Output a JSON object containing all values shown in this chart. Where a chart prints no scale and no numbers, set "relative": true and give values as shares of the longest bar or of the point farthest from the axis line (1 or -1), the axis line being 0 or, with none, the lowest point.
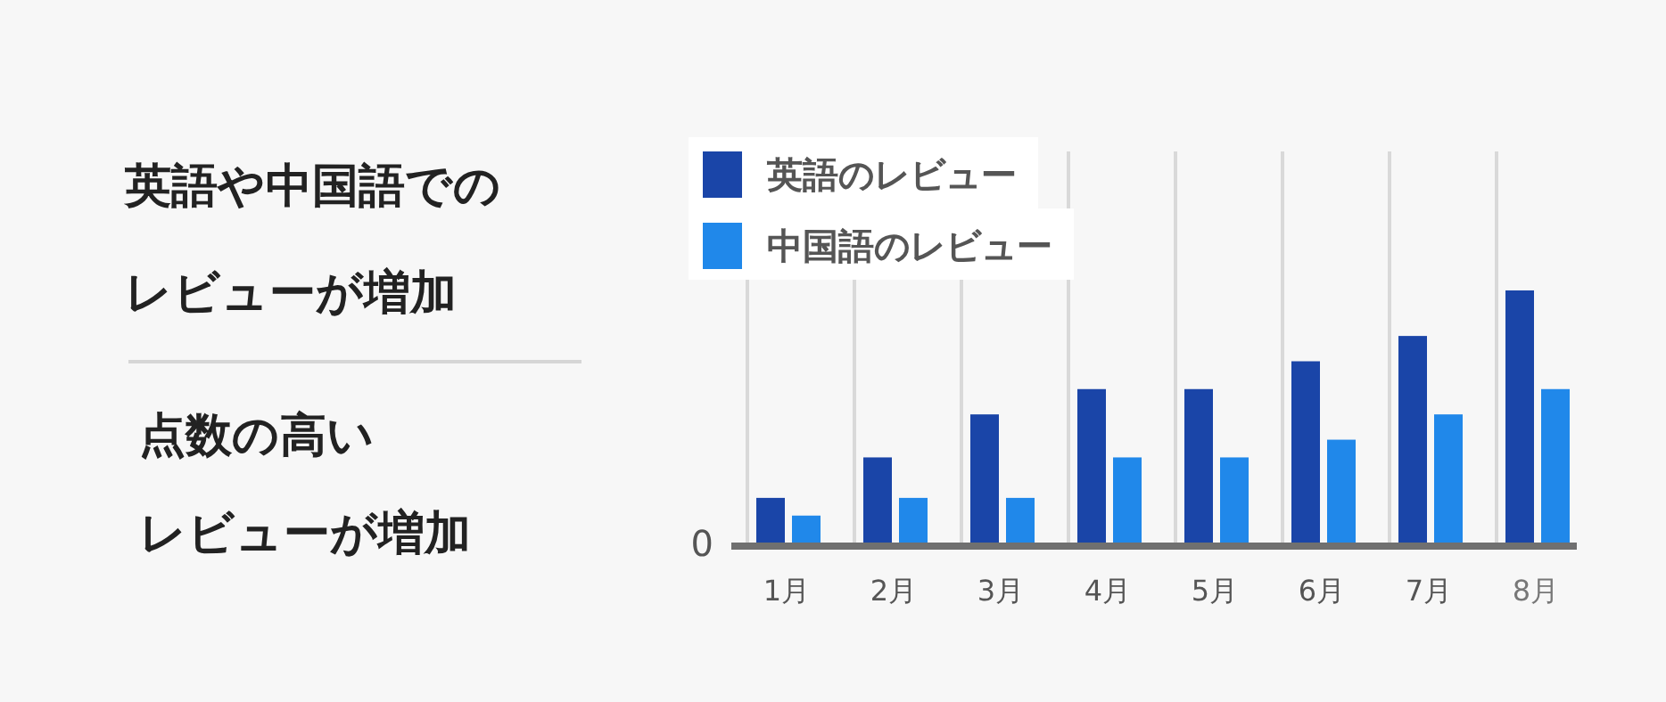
{
  "chart_data": {
    "type": "bar",
    "relative": true,
    "categories": [
      "1月",
      "2月",
      "3月",
      "4月",
      "5月",
      "6月",
      "7月",
      "8月"
    ],
    "series": [
      {
        "name": "英語のレビュー",
        "color": "#1a45a8",
        "values": [
          0.18,
          0.34,
          0.51,
          0.61,
          0.61,
          0.72,
          0.82,
          1
        ]
      },
      {
        "name": "中国語のレビュー",
        "color": "#2088ea",
        "values": [
          0.11,
          0.18,
          0.18,
          0.34,
          0.34,
          0.41,
          0.51,
          0.61
        ]
      }
    ],
    "grid": "x",
    "legend": "top left",
    "annotations": [
      "英語や中国語での",
      "レビューが増加",
      "点数の高い",
      "レビューが増加",
      "0"
    ]
  }
}
